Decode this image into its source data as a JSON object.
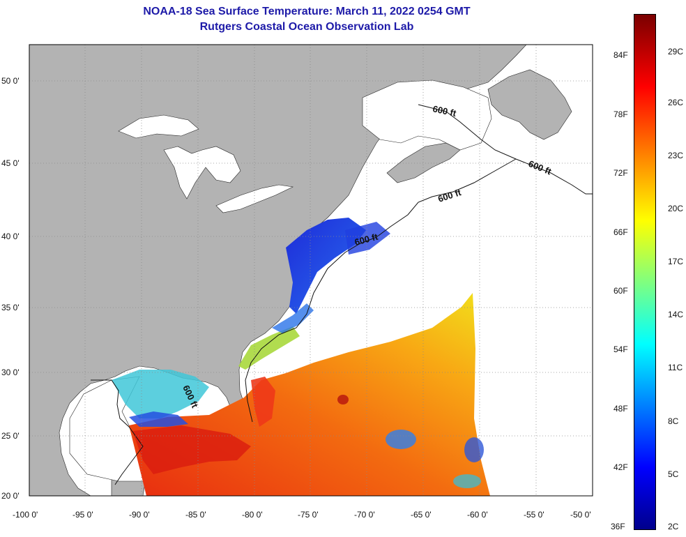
{
  "title": {
    "line1": "NOAA-18 Sea Surface Temperature:  March 11, 2022 0254 GMT",
    "line2": "Rutgers Coastal Ocean Observation Lab"
  },
  "axes": {
    "lat_ticks": [
      "50 0'",
      "45 0'",
      "40 0'",
      "35 0'",
      "30 0'",
      "25 0'",
      "20 0'"
    ],
    "lon_ticks": [
      "-100 0'",
      "-95 0'",
      "-90 0'",
      "-85 0'",
      "-80 0'",
      "-75 0'",
      "-70 0'",
      "-65 0'",
      "-60 0'",
      "-55 0'",
      "-50 0'"
    ]
  },
  "contour_labels": [
    "600 ft",
    "600 ft",
    "600 ft",
    "600 ft",
    "600 ft"
  ],
  "color_scale": {
    "fahrenheit": [
      "84F",
      "78F",
      "72F",
      "66F",
      "60F",
      "54F",
      "48F",
      "42F",
      "36F"
    ],
    "celsius": [
      "29C",
      "26C",
      "23C",
      "20C",
      "17C",
      "14C",
      "11C",
      "8C",
      "5C",
      "2C"
    ]
  },
  "colors": {
    "land": "#b3b3b3",
    "no_data": "#ffffff",
    "title": "#1d1aa8"
  }
}
